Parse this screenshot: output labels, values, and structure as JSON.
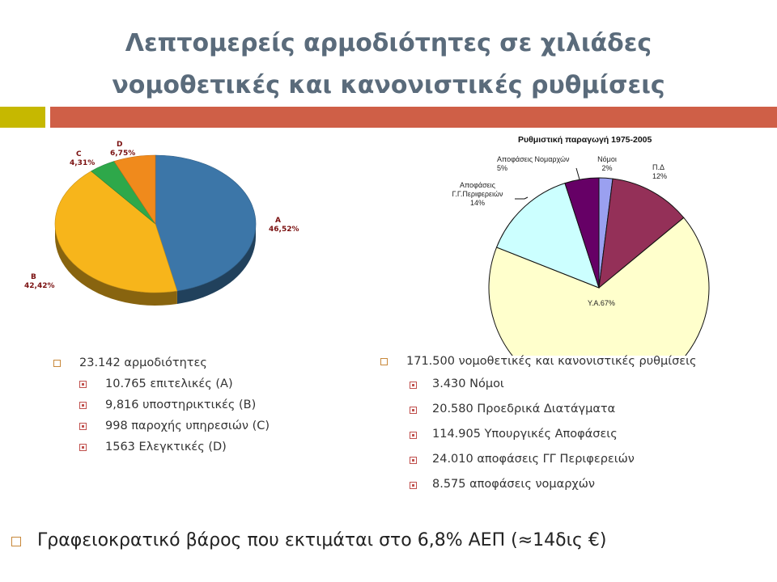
{
  "title": {
    "line1": "Λεπτομερείς αρμοδιότητες σε χιλιάδες",
    "line2": "νομοθετικές και κανονιστικές ρυθμίσεις"
  },
  "colors": {
    "accent_olive": "#c6b800",
    "accent_orange": "#cf5f47"
  },
  "chart_data": [
    {
      "type": "pie",
      "title": "",
      "slices": [
        {
          "label": "A",
          "value_label": "46,52%",
          "value": 46.52,
          "color": "#3c76a8"
        },
        {
          "label": "B",
          "value_label": "42,42%",
          "value": 42.42,
          "color": "#f7b51b"
        },
        {
          "label": "C",
          "value_label": "4,31%",
          "value": 4.31,
          "color": "#2ea84a"
        },
        {
          "label": "D",
          "value_label": "6,75%",
          "value": 6.75,
          "color": "#f08a1c"
        }
      ]
    },
    {
      "type": "pie",
      "title": "Ρυθμιστική παραγωγή 1975-2005",
      "slices": [
        {
          "label": "Νόμοι",
          "value_label": "2%",
          "value": 2,
          "color": "#9aa0f0"
        },
        {
          "label": "Π.Δ",
          "value_label": "12%",
          "value": 12,
          "color": "#943058"
        },
        {
          "label": "Υ.Α.",
          "value_label": "67%",
          "value": 67,
          "color": "#ffffcc"
        },
        {
          "label": "Αποφάσεις Γ.Γ.Περιφερειών",
          "value_label": "14%",
          "value": 14,
          "color": "#ccffff"
        },
        {
          "label": "Αποφάσεις Νομαρχών",
          "value_label": "5%",
          "value": 5,
          "color": "#660066"
        }
      ]
    }
  ],
  "left_list": {
    "heading": "23.142 αρμοδιότητες",
    "items": [
      "10.765 επιτελικές (A)",
      "9,816 υποστηρικτικές (B)",
      "998 παροχής υπηρεσιών (C)",
      "1563 Ελεγκτικές (D)"
    ]
  },
  "right_list": {
    "heading": "171.500 νομοθετικές και κανονιστικές ρυθμίσεις",
    "items": [
      "3.430 Νόμοι",
      "20.580 Προεδρικά Διατάγματα",
      "114.905 Υπουργικές Αποφάσεις",
      "24.010 αποφάσεις ΓΓ Περιφερειών",
      "8.575 αποφάσεις νομαρχών"
    ]
  },
  "bottom_text": "Γραφειοκρατικό βάρος που εκτιμάται στο 6,8% ΑΕΠ (≈14δις €)"
}
